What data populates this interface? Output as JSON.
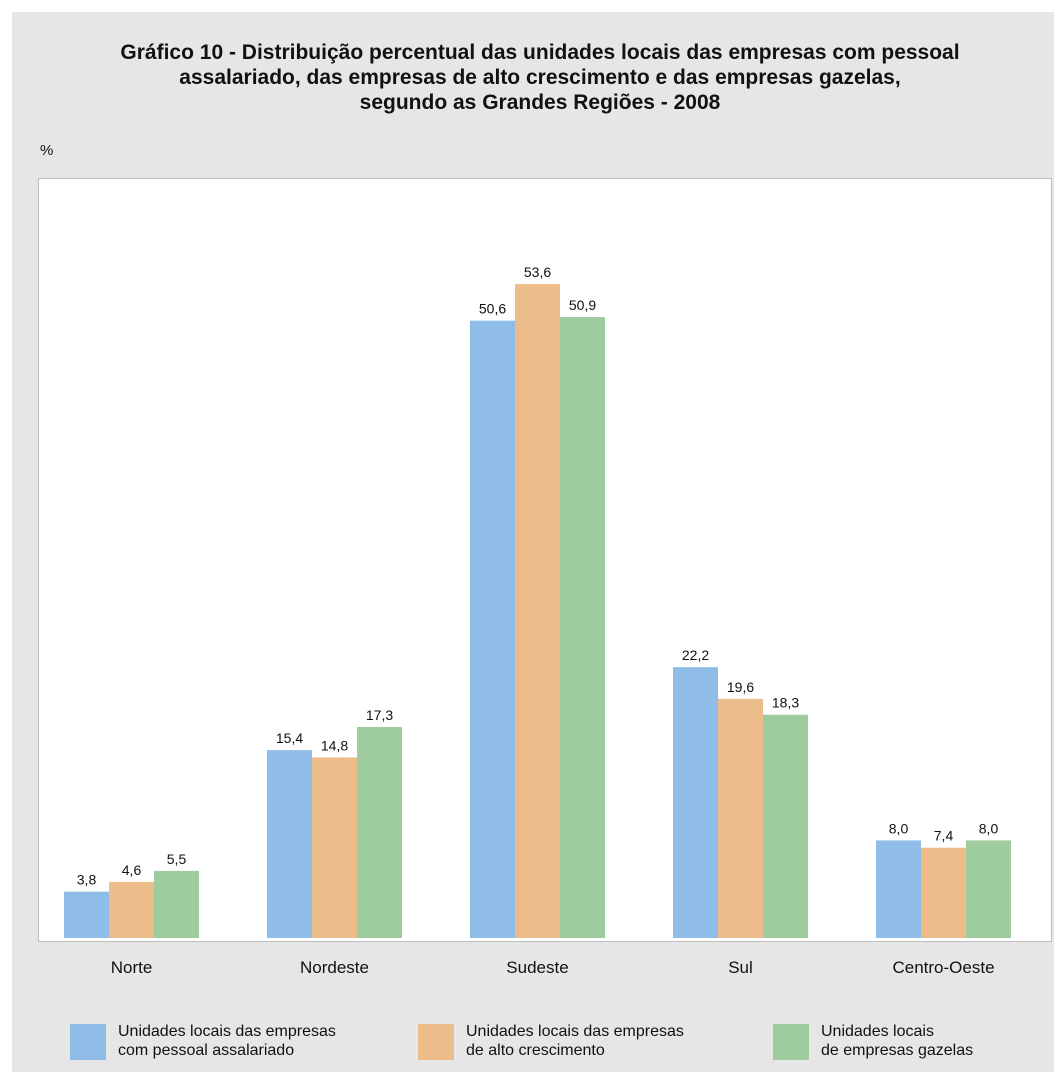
{
  "chart_data": {
    "type": "bar",
    "title_lines": [
      "Gráfico 10 - Distribuição percentual das unidades locais das empresas com pessoal",
      "assalariado, das empresas de alto crescimento e das empresas gazelas,",
      "segundo as Grandes Regiões - 2008"
    ],
    "ylabel": "%",
    "ylim": [
      0,
      60
    ],
    "grid": false,
    "legend_position": "bottom",
    "categories": [
      "Norte",
      "Nordeste",
      "Sudeste",
      "Sul",
      "Centro-Oeste"
    ],
    "series": [
      {
        "name_lines": [
          "Unidades locais das empresas",
          "com pessoal assalariado"
        ],
        "color": "#8fbde8",
        "values": [
          3.8,
          15.4,
          50.6,
          22.2,
          8.0
        ],
        "labels": [
          "3,8",
          "15,4",
          "50,6",
          "22,2",
          "8,0"
        ]
      },
      {
        "name_lines": [
          "Unidades locais das empresas",
          "de alto crescimento"
        ],
        "color": "#ecbd8a",
        "values": [
          4.6,
          14.8,
          53.6,
          19.6,
          7.4
        ],
        "labels": [
          "4,6",
          "14,8",
          "53,6",
          "19,6",
          "7,4"
        ]
      },
      {
        "name_lines": [
          "Unidades locais",
          "de empresas gazelas"
        ],
        "color": "#9ecc9f",
        "values": [
          5.5,
          17.3,
          50.9,
          18.3,
          8.0
        ],
        "labels": [
          "5,5",
          "17,3",
          "50,9",
          "18,3",
          "8,0"
        ]
      }
    ]
  }
}
